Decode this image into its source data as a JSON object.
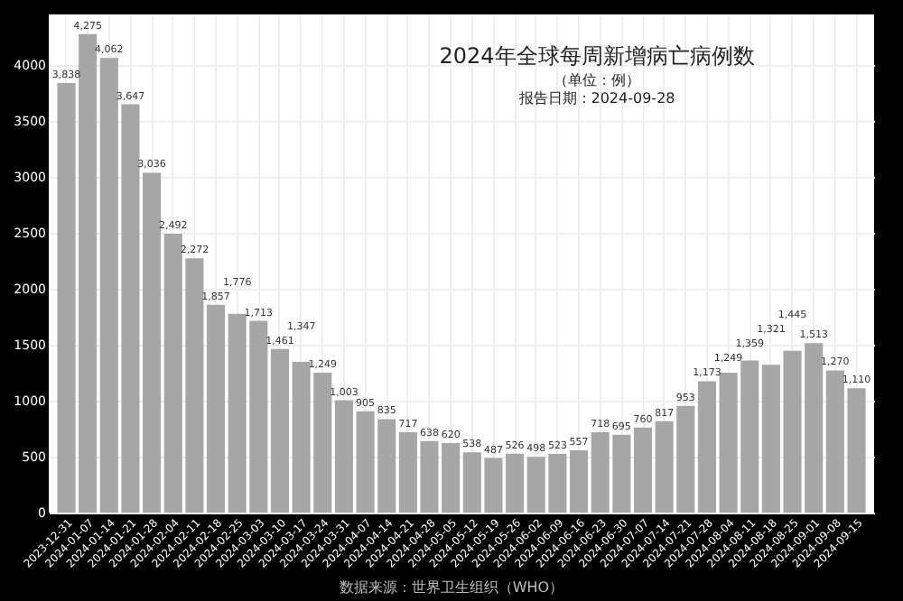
{
  "chart_data": {
    "type": "bar",
    "title": "2024年全球每周新增病亡病例数",
    "subtitle": "（单位：例）",
    "categories": [
      "2023-12-31",
      "2024-01-07",
      "2024-01-14",
      "2024-01-21",
      "2024-01-28",
      "2024-02-04",
      "2024-02-11",
      "2024-02-18",
      "2024-02-25",
      "2024-03-03",
      "2024-03-10",
      "2024-03-17",
      "2024-03-24",
      "2024-03-31",
      "2024-04-07",
      "2024-04-14",
      "2024-04-21",
      "2024-04-28",
      "2024-05-05",
      "2024-05-12",
      "2024-05-19",
      "2024-05-26",
      "2024-06-02",
      "2024-06-09",
      "2024-06-16",
      "2024-06-23",
      "2024-06-30",
      "2024-07-07",
      "2024-07-14",
      "2024-07-21",
      "2024-07-28",
      "2024-08-04",
      "2024-08-11",
      "2024-08-18",
      "2024-08-25",
      "2024-09-01",
      "2024-09-08",
      "2024-09-15"
    ],
    "values": [
      3838,
      4275,
      4062,
      3647,
      3036,
      2492,
      2272,
      1857,
      1776,
      1713,
      1461,
      1347,
      1249,
      1003,
      905,
      835,
      717,
      638,
      620,
      538,
      487,
      526,
      498,
      523,
      557,
      718,
      695,
      760,
      817,
      953,
      1173,
      1249,
      1359,
      1321,
      1445,
      1513,
      1270,
      1110
    ],
    "color": "#a6a6a6",
    "ylim": [
      0,
      4450
    ],
    "yticks": [
      0,
      500,
      1000,
      1500,
      2000,
      2500,
      3000,
      3500,
      4000
    ],
    "value_labels": [
      "3,838",
      "4,275",
      "4,062",
      "3,647",
      "3,036",
      "2,492",
      "2,272",
      "1,857",
      "1,776",
      "1,713",
      "1,461",
      "1,347",
      "1,249",
      "1,003",
      "905",
      "835",
      "717",
      "638",
      "620",
      "538",
      "487",
      "526",
      "498",
      "523",
      "557",
      "718",
      "695",
      "760",
      "817",
      "953",
      "1,173",
      "1,249",
      "1,359",
      "1,321",
      "1,445",
      "1,513",
      "1,270",
      "1,110"
    ],
    "grid": true,
    "annotations": [
      "报告日期：2024-09-28",
      "数据来源：世界卫生组织（WHO）"
    ]
  }
}
